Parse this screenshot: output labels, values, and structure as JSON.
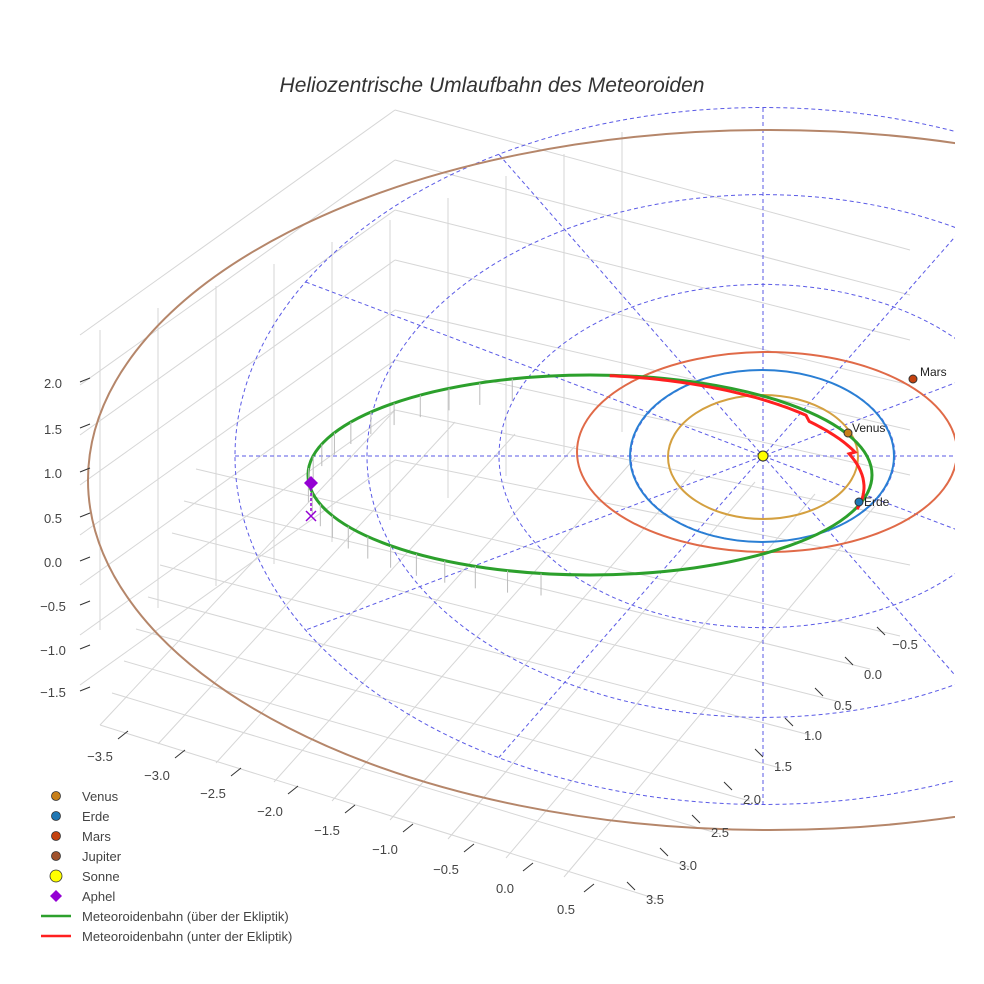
{
  "chart_data": {
    "type": "scatter3d",
    "title": "Heliozentrische Umlaufbahn des Meteoroiden",
    "axes": {
      "x": {
        "ticks": [
          "−3.5",
          "−3.0",
          "−2.5",
          "−2.0",
          "−1.5",
          "−1.0",
          "−0.5",
          "0.0",
          "0.5"
        ],
        "range": [
          -3.6,
          0.6
        ]
      },
      "y": {
        "ticks": [
          "−0.5",
          "0.0",
          "0.5",
          "1.0",
          "1.5",
          "2.0",
          "2.5",
          "3.0",
          "3.5"
        ],
        "range": [
          -0.7,
          3.6
        ]
      },
      "z": {
        "ticks": [
          "2.0",
          "1.5",
          "1.0",
          "0.5",
          "0.0",
          "−0.5",
          "−1.0",
          "−1.5"
        ],
        "range": [
          -1.8,
          2.2
        ]
      }
    },
    "orbits": [
      {
        "name": "Venus",
        "radius_au": 0.72,
        "color": "#d4a040"
      },
      {
        "name": "Erde",
        "radius_au": 1.0,
        "color": "#2a7fd4"
      },
      {
        "name": "Mars",
        "radius_au": 1.52,
        "color": "#e06a48"
      },
      {
        "name": "Jupiter",
        "radius_au": 5.2,
        "color": "#b5866a"
      }
    ],
    "point_labels": {
      "venus": "Venus",
      "erde": "Erde",
      "mars": "Mars"
    },
    "legend": [
      {
        "name": "Venus",
        "symbol": "circle",
        "color": "#c77f1a"
      },
      {
        "name": "Erde",
        "symbol": "circle",
        "color": "#1f77b4"
      },
      {
        "name": "Mars",
        "symbol": "circle",
        "color": "#c4420f"
      },
      {
        "name": "Jupiter",
        "symbol": "circle",
        "color": "#a0522d"
      },
      {
        "name": "Sonne",
        "symbol": "circle-large",
        "color": "#ffff00"
      },
      {
        "name": "Aphel",
        "symbol": "diamond",
        "color": "#9400d3"
      },
      {
        "name": "Meteoroidenbahn (über der Ekliptik)",
        "symbol": "line",
        "color": "#2ca02c"
      },
      {
        "name": "Meteoroidenbahn (unter der Ekliptik)",
        "symbol": "line",
        "color": "#ff2020"
      }
    ],
    "ecliptic_grid_rings_au": [
      1,
      2,
      3,
      4
    ],
    "legend_position": "bottom-left"
  }
}
